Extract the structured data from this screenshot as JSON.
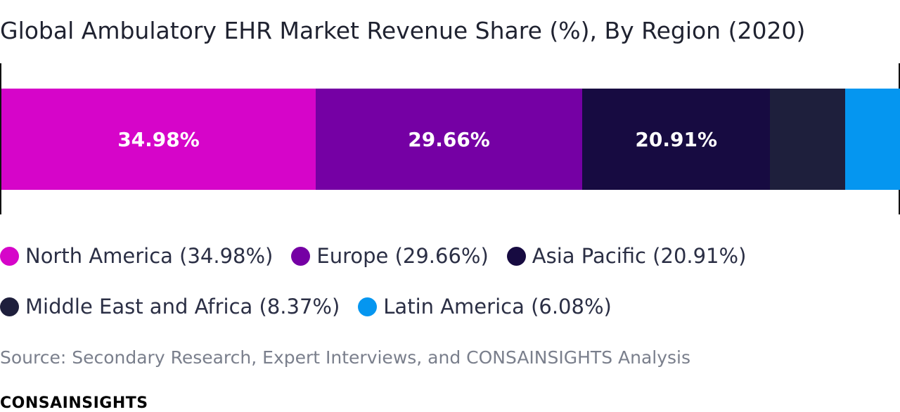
{
  "chart_data": {
    "type": "bar",
    "orientation": "horizontal-stacked-100",
    "title": "Global Ambulatory EHR Market Revenue Share (%), By Region (2020)",
    "unit": "%",
    "series": [
      {
        "name": "North America",
        "value": 34.98,
        "label": "34.98%",
        "legend": "North America (34.98%)",
        "color": "#d605c9"
      },
      {
        "name": "Europe",
        "value": 29.66,
        "label": "29.66%",
        "legend": "Europe (29.66%)",
        "color": "#7500a4"
      },
      {
        "name": "Asia Pacific",
        "value": 20.91,
        "label": "20.91%",
        "legend": "Asia Pacific (20.91%)",
        "color": "#170b41"
      },
      {
        "name": "Middle East and Africa",
        "value": 8.37,
        "label": "",
        "legend": "Middle East and Africa (8.37%)",
        "color": "#1e1f3c"
      },
      {
        "name": "Latin America",
        "value": 6.08,
        "label": "",
        "legend": "Latin America (6.08%)",
        "color": "#0596f0"
      }
    ],
    "legend_position": "bottom"
  },
  "source_text": "Source: Secondary Research, Expert Interviews, and CONSAINSIGHTS Analysis",
  "brand": "CONSAINSIGHTS"
}
